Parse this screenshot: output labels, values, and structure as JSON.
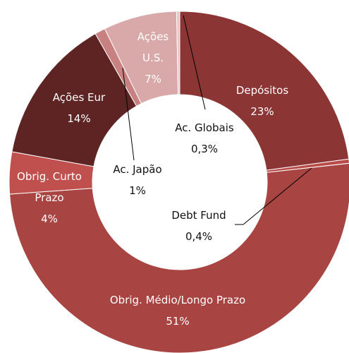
{
  "chart_data": {
    "type": "donut",
    "categories": [
      "Depósitos",
      "Debt Fund",
      "Obrig. Médio/Longo Prazo",
      "Obrig. Curto Prazo",
      "Ações Eur",
      "Ac. Japão",
      "Ações U.S.",
      "Ac. Globais"
    ],
    "values": [
      23,
      0.4,
      51,
      4,
      14,
      1,
      7,
      0.3
    ],
    "value_labels": [
      "23%",
      "0,4%",
      "51%",
      "4%",
      "14%",
      "1%",
      "7%",
      "0,3%"
    ],
    "colors": [
      "#8b3535",
      "#b84a48",
      "#a84442",
      "#c0504d",
      "#5e2424",
      "#c88080",
      "#d9a9a9",
      "#e9c6c6"
    ]
  }
}
